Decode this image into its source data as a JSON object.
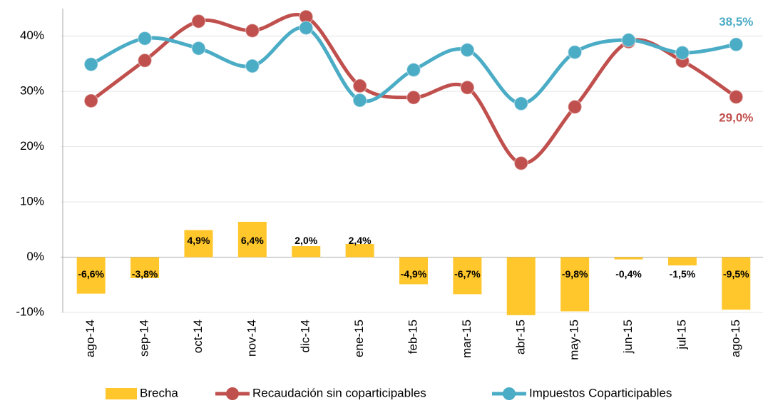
{
  "chart_data": {
    "type": "bar_line",
    "categories": [
      "ago-14",
      "sep-14",
      "oct-14",
      "nov-14",
      "dic-14",
      "ene-15",
      "feb-15",
      "mar-15",
      "abr-15",
      "may-15",
      "jun-15",
      "jul-15",
      "ago-15"
    ],
    "ylim": [
      -10,
      45
    ],
    "yticks": [
      {
        "value": -10,
        "label": "-10%"
      },
      {
        "value": 0,
        "label": "0%"
      },
      {
        "value": 10,
        "label": "10%"
      },
      {
        "value": 20,
        "label": "20%"
      },
      {
        "value": 30,
        "label": "30%"
      },
      {
        "value": 40,
        "label": "40%"
      }
    ],
    "grid": true,
    "legend": "bottom",
    "series": [
      {
        "name": "Brecha",
        "type": "bar",
        "color": "#FFC72C",
        "values": [
          -6.6,
          -3.8,
          4.9,
          6.4,
          2.0,
          2.4,
          -4.9,
          -6.7,
          -10.5,
          -9.8,
          -0.4,
          -1.5,
          -9.5
        ],
        "value_labels": [
          "-6,6%",
          "-3,8%",
          "4,9%",
          "6,4%",
          "2,0%",
          "2,4%",
          "-4,9%",
          "-6,7%",
          null,
          "-9,8%",
          "-0,4%",
          "-1,5%",
          "-9,5%"
        ]
      },
      {
        "name": "Recaudación sin coparticipables",
        "type": "line",
        "color": "#C0504D",
        "values": [
          28.3,
          35.6,
          42.7,
          41.0,
          43.5,
          31.0,
          28.9,
          30.7,
          17.0,
          27.2,
          39.0,
          35.5,
          29.0
        ],
        "value_labels": [
          null,
          null,
          null,
          null,
          null,
          null,
          null,
          null,
          null,
          null,
          null,
          null,
          "29,0%"
        ]
      },
      {
        "name": "Impuestos Coparticipables",
        "type": "line",
        "color": "#4BACC6",
        "values": [
          34.9,
          39.6,
          37.8,
          34.6,
          41.5,
          28.4,
          33.9,
          37.5,
          27.8,
          37.1,
          39.3,
          37.0,
          38.5
        ],
        "value_labels": [
          null,
          null,
          null,
          null,
          null,
          null,
          null,
          null,
          null,
          null,
          null,
          null,
          "38,5%"
        ]
      }
    ]
  }
}
